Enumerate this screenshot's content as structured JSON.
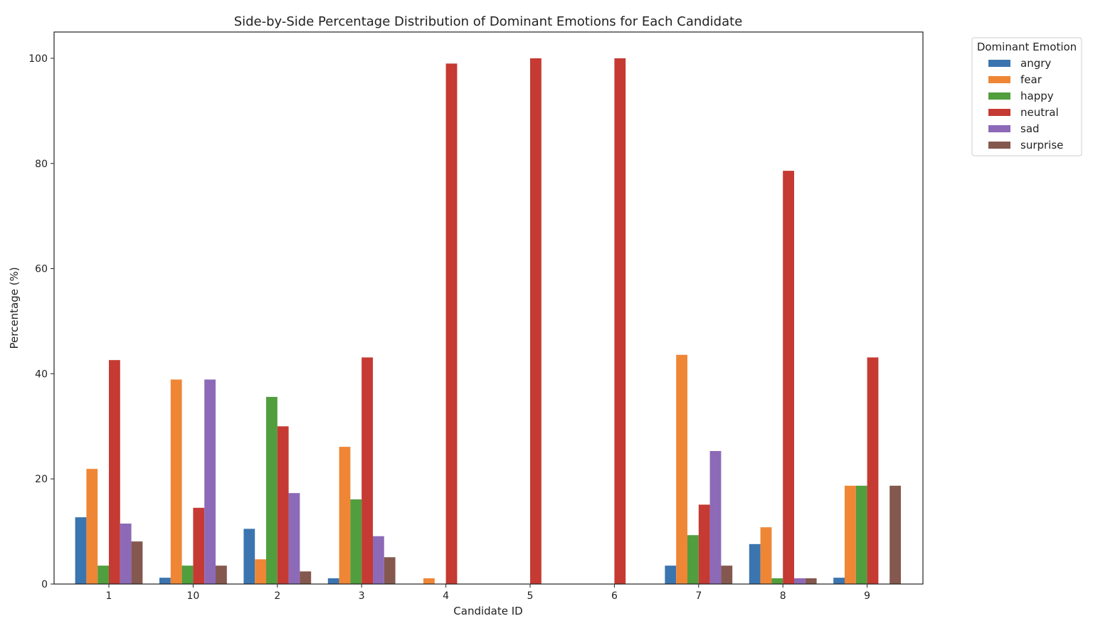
{
  "chart_data": {
    "type": "bar",
    "title": "Side-by-Side Percentage Distribution of Dominant Emotions for Each Candidate",
    "xlabel": "Candidate ID",
    "ylabel": "Percentage (%)",
    "ylim": [
      0,
      105
    ],
    "yticks": [
      0,
      20,
      40,
      60,
      80,
      100
    ],
    "grid": false,
    "legend_title": "Dominant Emotion",
    "legend_position": "outside-top-right",
    "categories": [
      "1",
      "10",
      "2",
      "3",
      "4",
      "5",
      "6",
      "7",
      "8",
      "9"
    ],
    "series": [
      {
        "name": "angry",
        "color": "#3b75af",
        "values": [
          12.7,
          1.2,
          10.5,
          1.1,
          0,
          0,
          0,
          3.5,
          7.6,
          1.2
        ]
      },
      {
        "name": "fear",
        "color": "#ef8636",
        "values": [
          21.9,
          38.9,
          4.7,
          26.1,
          1.1,
          0,
          0,
          43.6,
          10.8,
          18.7
        ]
      },
      {
        "name": "happy",
        "color": "#519e3e",
        "values": [
          3.5,
          3.5,
          35.6,
          16.1,
          0,
          0,
          0,
          9.3,
          1.1,
          18.7
        ]
      },
      {
        "name": "neutral",
        "color": "#c53a32",
        "values": [
          42.6,
          14.5,
          30.0,
          43.1,
          99.0,
          100.0,
          100.0,
          15.1,
          78.6,
          43.1
        ]
      },
      {
        "name": "sad",
        "color": "#8d6ab8",
        "values": [
          11.5,
          38.9,
          17.3,
          9.1,
          0,
          0,
          0,
          25.3,
          1.1,
          0
        ]
      },
      {
        "name": "surprise",
        "color": "#84584e",
        "values": [
          8.1,
          3.5,
          2.4,
          5.1,
          0,
          0,
          0,
          3.5,
          1.1,
          18.7
        ]
      }
    ]
  }
}
